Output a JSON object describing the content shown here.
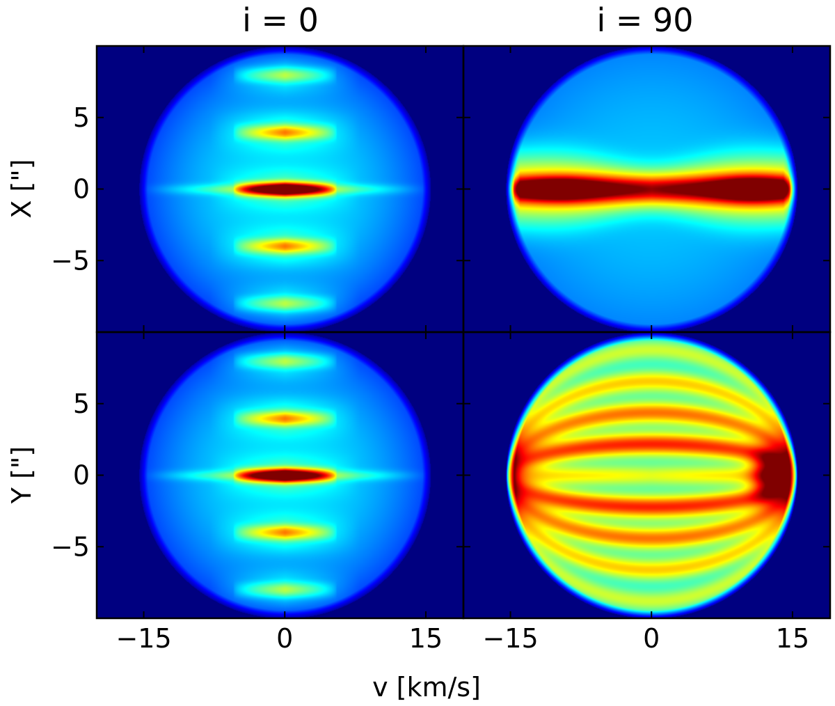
{
  "chart_data": {
    "type": "heatmap",
    "colormap": "jet",
    "column_titles": [
      "i = 0",
      "i = 90"
    ],
    "row_ylabels": [
      "X [\"]",
      "Y [\"]"
    ],
    "xlabel": "v [km/s]",
    "xlim": [
      -20,
      19
    ],
    "ylim": [
      -10,
      10
    ],
    "xticks": [
      -15,
      0,
      15
    ],
    "xtick_labels": [
      "−15",
      "0",
      "15"
    ],
    "yticks": [
      5,
      0,
      -5
    ],
    "ytick_labels": [
      "5",
      "0",
      "−5"
    ],
    "panels": [
      {
        "row": 0,
        "col": 0,
        "inclination": 0,
        "spatial_axis": "X",
        "pattern": "banded",
        "v_max": 15.5,
        "band_spacing": 2.0,
        "band_width": 5.5,
        "max_intensity_at": [
          0,
          0
        ]
      },
      {
        "row": 0,
        "col": 1,
        "inclination": 90,
        "spatial_axis": "X",
        "pattern": "edge-on",
        "v_max": 15.5,
        "max_intensity_at": [
          [
            -10,
            0
          ],
          [
            11,
            0
          ]
        ]
      },
      {
        "row": 1,
        "col": 0,
        "inclination": 0,
        "spatial_axis": "Y",
        "pattern": "banded",
        "v_max": 15.5,
        "band_spacing": 2.0,
        "band_width": 5.5,
        "max_intensity_at": [
          0,
          0
        ]
      },
      {
        "row": 1,
        "col": 1,
        "inclination": 90,
        "spatial_axis": "Y",
        "pattern": "arcs",
        "v_max": 15.5,
        "max_intensity_at": [
          12.5,
          0
        ]
      }
    ]
  }
}
